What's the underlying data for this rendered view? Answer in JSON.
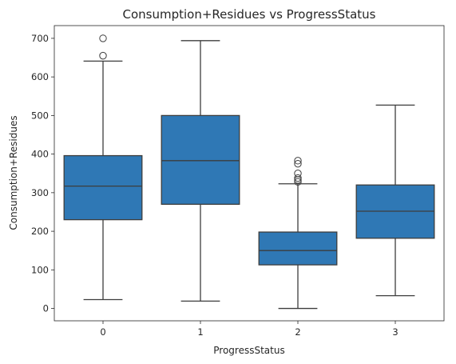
{
  "chart_data": {
    "type": "box",
    "title": "Consumption+Residues vs ProgressStatus",
    "xlabel": "ProgressStatus",
    "ylabel": "Consumption+Residues",
    "ylim": [
      -32,
      733
    ],
    "yticks": [
      0,
      100,
      200,
      300,
      400,
      500,
      600,
      700
    ],
    "grid": false,
    "legend": "none",
    "box_color": "#2f78b5",
    "line_color": "#3d3d3d",
    "categories": [
      "0",
      "1",
      "2",
      "3"
    ],
    "boxes": [
      {
        "category": "0",
        "whisker_low": 23,
        "q1": 230,
        "median": 317,
        "q3": 396,
        "whisker_high": 641,
        "outliers": [
          655,
          700
        ]
      },
      {
        "category": "1",
        "whisker_low": 19,
        "q1": 270,
        "median": 383,
        "q3": 500,
        "whisker_high": 694,
        "outliers": []
      },
      {
        "category": "2",
        "whisker_low": 0,
        "q1": 113,
        "median": 150,
        "q3": 198,
        "whisker_high": 323,
        "outliers": [
          328,
          333,
          338,
          350,
          375,
          383
        ]
      },
      {
        "category": "3",
        "whisker_low": 33,
        "q1": 182,
        "median": 252,
        "q3": 320,
        "whisker_high": 527,
        "outliers": []
      }
    ]
  }
}
